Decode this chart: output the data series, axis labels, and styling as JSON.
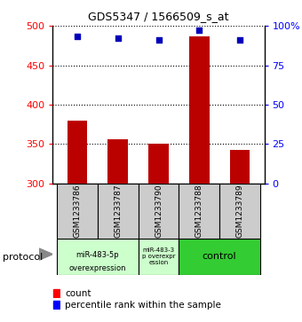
{
  "title": "GDS5347 / 1566509_s_at",
  "samples": [
    "GSM1233786",
    "GSM1233787",
    "GSM1233790",
    "GSM1233788",
    "GSM1233789"
  ],
  "counts": [
    380,
    356,
    350,
    487,
    343
  ],
  "percentiles": [
    93,
    92,
    91,
    97,
    91
  ],
  "y_min": 300,
  "y_max": 500,
  "y_ticks": [
    300,
    350,
    400,
    450,
    500
  ],
  "right_y_ticks": [
    0,
    25,
    50,
    75,
    100
  ],
  "right_y_labels": [
    "0",
    "25",
    "50",
    "75",
    "100%"
  ],
  "bar_color": "#bb0000",
  "dot_color": "#0000bb",
  "bar_bottom": 300,
  "group1_label_line1": "miR-483-5p",
  "group1_label_line2": "overexpression",
  "group2_label": "miR-483-3\np overexpr\nession",
  "group3_label": "control",
  "group_color_light": "#ccffcc",
  "group_color_dark": "#33cc33",
  "sample_box_color": "#cccccc",
  "protocol_label": "protocol",
  "legend_count_label": "count",
  "legend_percentile_label": "percentile rank within the sample",
  "title_fontsize": 9,
  "bar_tick_fontsize": 8,
  "sample_fontsize": 6.5,
  "group_fontsize_small": 6,
  "group_fontsize_large": 8
}
